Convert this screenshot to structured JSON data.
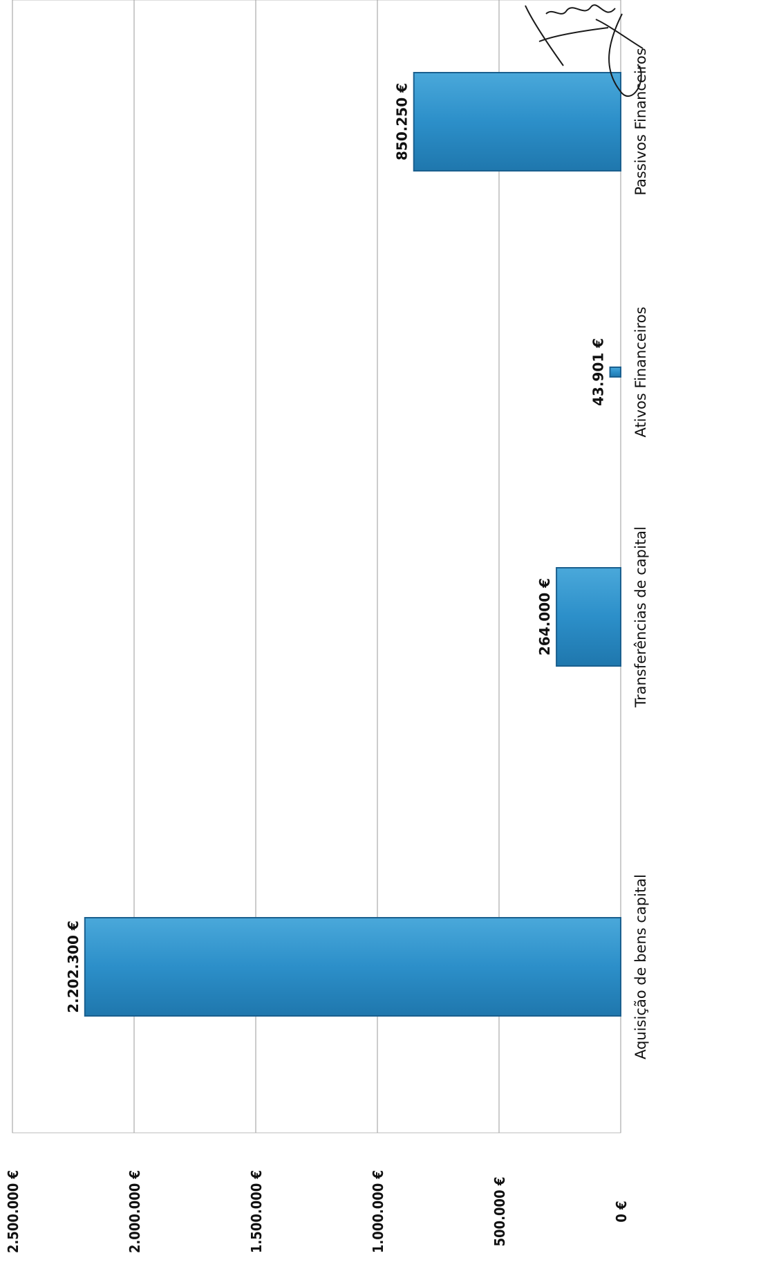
{
  "chart_data": {
    "type": "bar",
    "orientation": "rotated-90-clockwise",
    "categories": [
      "Aquisição de bens capital",
      "Transferências de capital",
      "Ativos Financeiros",
      "Passivos Financeiros"
    ],
    "values": [
      2202300,
      264000,
      43901,
      850250
    ],
    "data_labels": [
      "2.202.300 €",
      "264.000 €",
      "43.901 €",
      "850.250 €"
    ],
    "ylim": [
      0,
      2500000
    ],
    "yticks": [
      0,
      500000,
      1000000,
      1500000,
      2000000,
      2500000
    ],
    "ytick_labels": [
      "0 €",
      "500.000 €",
      "1.000.000 €",
      "1.500.000 €",
      "2.000.000 €",
      "2.500.000 €"
    ],
    "grid": true,
    "colors": {
      "bar": "#2c8fc9",
      "bar_edge": "#1a5f8e",
      "grid": "#9a9a9a"
    },
    "signature": "handwritten signature"
  }
}
